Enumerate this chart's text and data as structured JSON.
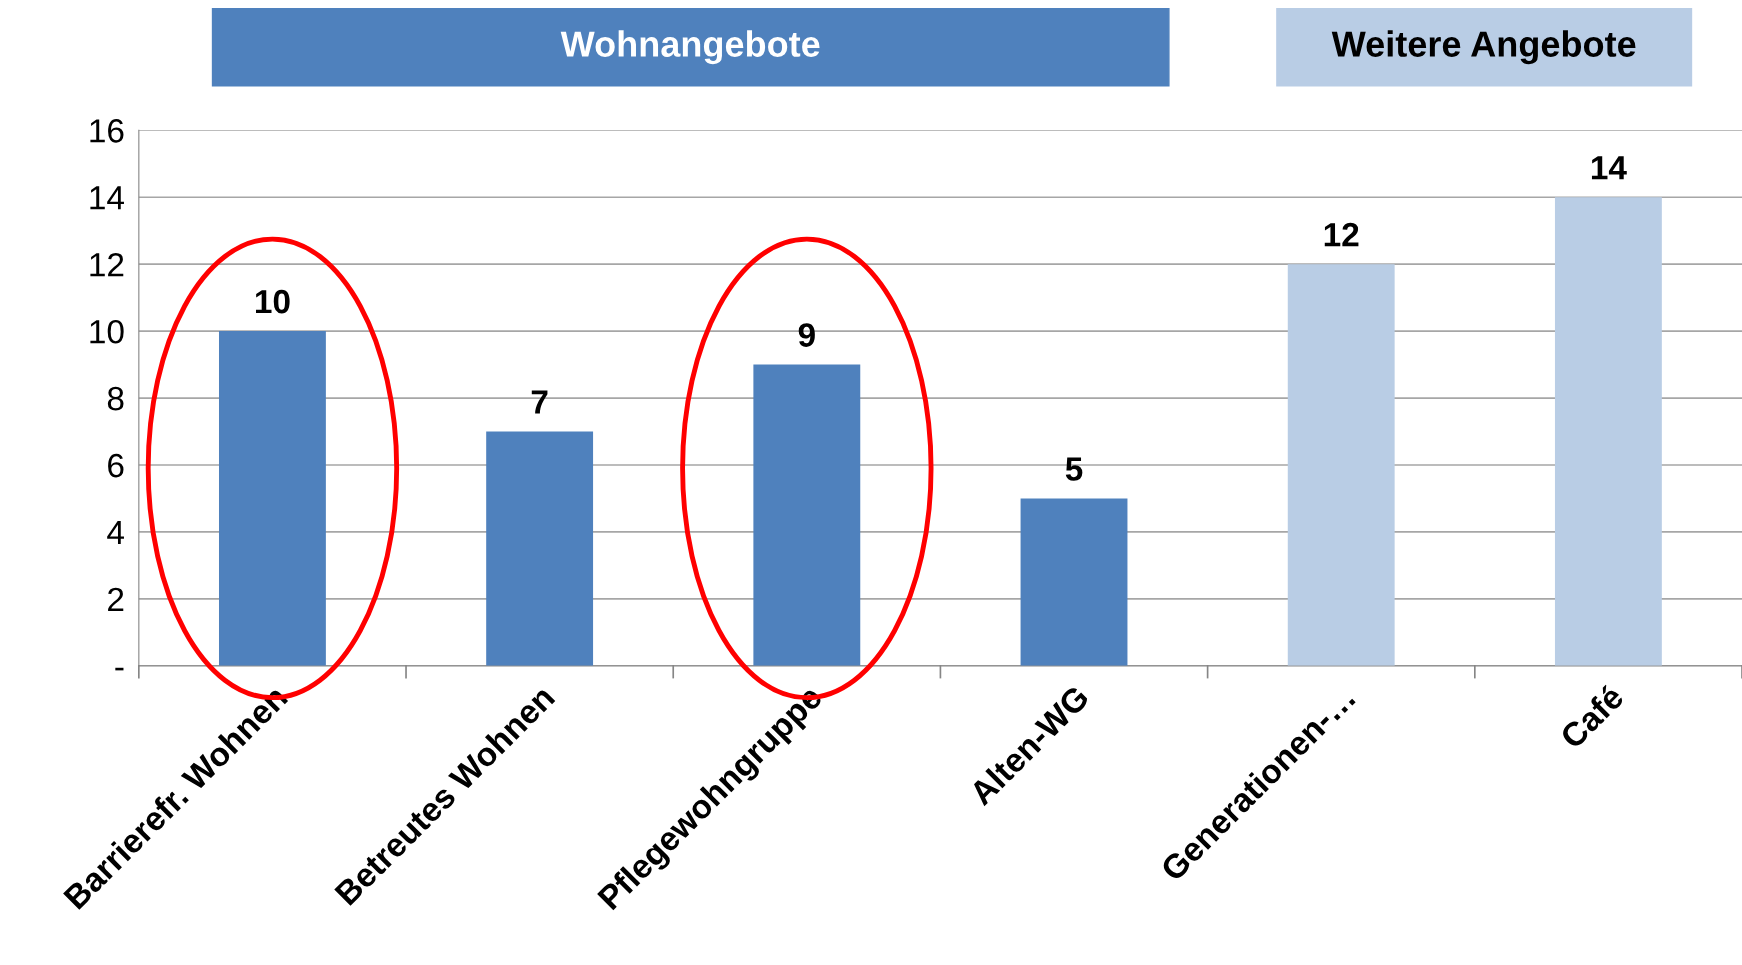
{
  "chart_data": {
    "type": "bar",
    "categories": [
      "Barrierefr. Wohnen",
      "Betreutes Wohnen",
      "Pflegewohngruppe",
      "Alten-WG",
      "Generationen-…",
      "Café"
    ],
    "values": [
      10,
      7,
      9,
      5,
      12,
      14
    ],
    "colors": [
      "#4f81bd",
      "#4f81bd",
      "#4f81bd",
      "#4f81bd",
      "#b9cde5",
      "#b9cde5"
    ],
    "ylim": [
      0,
      16
    ],
    "yticks": [
      {
        "value": 0,
        "label": "-"
      },
      2,
      4,
      6,
      8,
      10,
      12,
      14,
      16
    ],
    "grid": "y",
    "data_labels": true,
    "annotations": [
      "Wohnangebote",
      "Weitere Angebote"
    ]
  }
}
